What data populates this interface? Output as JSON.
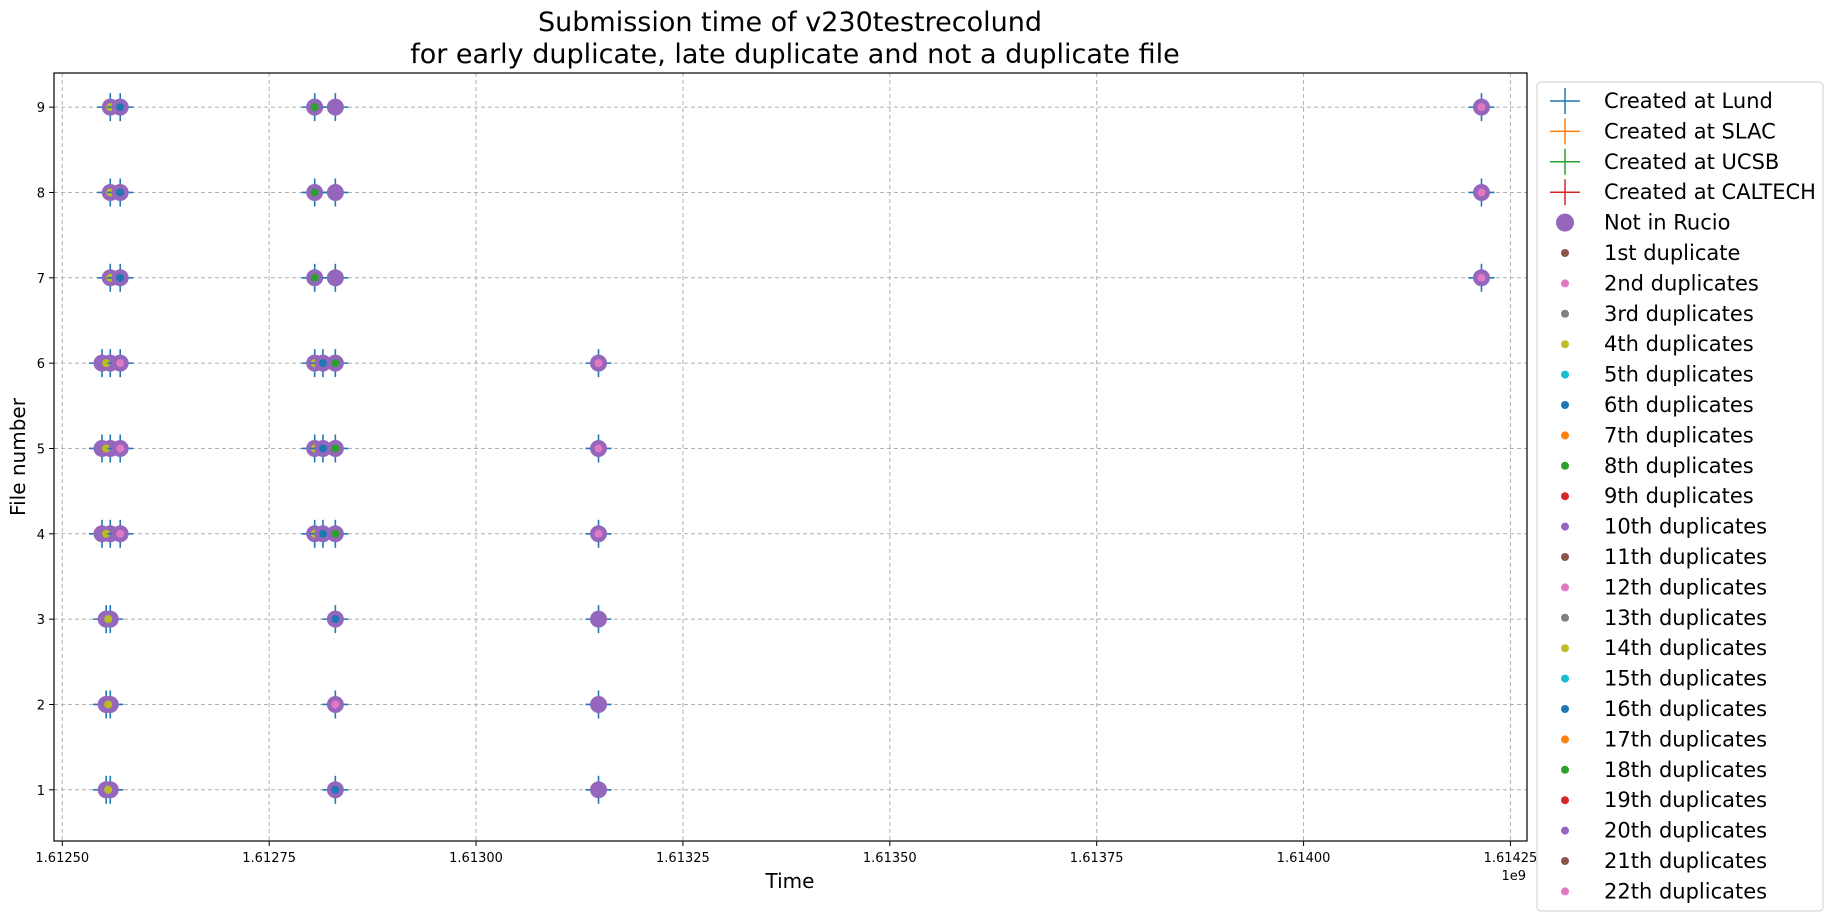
{
  "chart_data": {
    "type": "scatter",
    "title_line1": "Submission time of v230testrecolund",
    "title_line2": "for early duplicate, late duplicate and not a duplicate file",
    "xlabel": "Time",
    "ylabel": "File number",
    "x_offset_label": "1e9",
    "xlim": [
      1.61249,
      1.61427
    ],
    "ylim": [
      0.4,
      9.4
    ],
    "x_ticks": [
      1.6125,
      1.61275,
      1.613,
      1.61325,
      1.6135,
      1.61375,
      1.614,
      1.61425
    ],
    "x_tick_labels": [
      "1.61250",
      "1.61275",
      "1.61300",
      "1.61325",
      "1.61350",
      "1.61375",
      "1.61400",
      "1.61425"
    ],
    "y_ticks": [
      1,
      2,
      3,
      4,
      5,
      6,
      7,
      8,
      9
    ],
    "y_tick_labels": [
      "1",
      "2",
      "3",
      "4",
      "5",
      "6",
      "7",
      "8",
      "9"
    ],
    "grid": true,
    "legend_position": "outside-right",
    "colors": {
      "lund": "#1f77b4",
      "slac": "#ff7f0e",
      "ucsb": "#2ca02c",
      "caltech": "#d62728",
      "not_in_rucio": "#9467bd",
      "dup_cycle": [
        "#8c564b",
        "#e377c2",
        "#7f7f7f",
        "#bcbd22",
        "#17becf",
        "#1f77b4",
        "#ff7f0e",
        "#2ca02c",
        "#d62728",
        "#9467bd"
      ]
    },
    "legend": [
      {
        "label": "Created at Lund",
        "marker": "plus",
        "color": "#1f77b4"
      },
      {
        "label": "Created at SLAC",
        "marker": "plus",
        "color": "#ff7f0e"
      },
      {
        "label": "Created at UCSB",
        "marker": "plus",
        "color": "#2ca02c"
      },
      {
        "label": "Created at CALTECH",
        "marker": "plus",
        "color": "#d62728"
      },
      {
        "label": "Not in Rucio",
        "marker": "big-dot",
        "color": "#9467bd"
      },
      {
        "label": "1st duplicate",
        "marker": "dot",
        "color": "#8c564b"
      },
      {
        "label": "2nd duplicates",
        "marker": "dot",
        "color": "#e377c2"
      },
      {
        "label": "3rd duplicates",
        "marker": "dot",
        "color": "#7f7f7f"
      },
      {
        "label": "4th duplicates",
        "marker": "dot",
        "color": "#bcbd22"
      },
      {
        "label": "5th duplicates",
        "marker": "dot",
        "color": "#17becf"
      },
      {
        "label": "6th duplicates",
        "marker": "dot",
        "color": "#1f77b4"
      },
      {
        "label": "7th duplicates",
        "marker": "dot",
        "color": "#ff7f0e"
      },
      {
        "label": "8th duplicates",
        "marker": "dot",
        "color": "#2ca02c"
      },
      {
        "label": "9th duplicates",
        "marker": "dot",
        "color": "#d62728"
      },
      {
        "label": "10th duplicates",
        "marker": "dot",
        "color": "#9467bd"
      },
      {
        "label": "11th duplicates",
        "marker": "dot",
        "color": "#8c564b"
      },
      {
        "label": "12th duplicates",
        "marker": "dot",
        "color": "#e377c2"
      },
      {
        "label": "13th duplicates",
        "marker": "dot",
        "color": "#7f7f7f"
      },
      {
        "label": "14th duplicates",
        "marker": "dot",
        "color": "#bcbd22"
      },
      {
        "label": "15th duplicates",
        "marker": "dot",
        "color": "#17becf"
      },
      {
        "label": "16th duplicates",
        "marker": "dot",
        "color": "#1f77b4"
      },
      {
        "label": "17th duplicates",
        "marker": "dot",
        "color": "#ff7f0e"
      },
      {
        "label": "18th duplicates",
        "marker": "dot",
        "color": "#2ca02c"
      },
      {
        "label": "19th duplicates",
        "marker": "dot",
        "color": "#d62728"
      },
      {
        "label": "20th duplicates",
        "marker": "dot",
        "color": "#9467bd"
      },
      {
        "label": "21th duplicates",
        "marker": "dot",
        "color": "#8c564b"
      },
      {
        "label": "22th duplicates",
        "marker": "dot",
        "color": "#e377c2"
      }
    ],
    "points": [
      {
        "file": 1,
        "times": [
          1.612553,
          1.612558
        ],
        "lund": true,
        "rucio_missing": true,
        "dup_colors": [
          "#bcbd22"
        ]
      },
      {
        "file": 1,
        "times": [
          1.61283
        ],
        "lund": true,
        "rucio_missing": true,
        "dup_colors": [
          "#1f77b4"
        ]
      },
      {
        "file": 1,
        "times": [
          1.613148
        ],
        "lund": true,
        "rucio_missing": true,
        "dup_colors": []
      },
      {
        "file": 2,
        "times": [
          1.612553,
          1.612558
        ],
        "lund": true,
        "rucio_missing": true,
        "dup_colors": [
          "#bcbd22"
        ]
      },
      {
        "file": 2,
        "times": [
          1.61283
        ],
        "lund": true,
        "rucio_missing": true,
        "dup_colors": [
          "#e377c2"
        ]
      },
      {
        "file": 2,
        "times": [
          1.613148
        ],
        "lund": true,
        "rucio_missing": true,
        "dup_colors": []
      },
      {
        "file": 3,
        "times": [
          1.612553,
          1.612558
        ],
        "lund": true,
        "rucio_missing": true,
        "dup_colors": [
          "#bcbd22"
        ]
      },
      {
        "file": 3,
        "times": [
          1.61283
        ],
        "lund": true,
        "rucio_missing": true,
        "dup_colors": [
          "#1f77b4"
        ]
      },
      {
        "file": 3,
        "times": [
          1.613148
        ],
        "lund": true,
        "rucio_missing": true,
        "dup_colors": []
      },
      {
        "file": 4,
        "times": [
          1.612548,
          1.612558
        ],
        "lund": true,
        "rucio_missing": true,
        "dup_colors": [
          "#bcbd22"
        ]
      },
      {
        "file": 4,
        "times": [
          1.61257
        ],
        "lund": true,
        "rucio_missing": true,
        "dup_colors": [
          "#e377c2"
        ]
      },
      {
        "file": 4,
        "times": [
          1.612805
        ],
        "lund": true,
        "rucio_missing": true,
        "dup_colors": [
          "#bcbd22"
        ]
      },
      {
        "file": 4,
        "times": [
          1.612815
        ],
        "lund": true,
        "rucio_missing": true,
        "dup_colors": [
          "#1f77b4"
        ]
      },
      {
        "file": 4,
        "times": [
          1.61283
        ],
        "lund": true,
        "rucio_missing": true,
        "dup_colors": [
          "#2ca02c"
        ]
      },
      {
        "file": 4,
        "times": [
          1.613148
        ],
        "lund": true,
        "rucio_missing": true,
        "dup_colors": [
          "#e377c2"
        ]
      },
      {
        "file": 5,
        "times": [
          1.612548,
          1.612558
        ],
        "lund": true,
        "rucio_missing": true,
        "dup_colors": [
          "#bcbd22"
        ]
      },
      {
        "file": 5,
        "times": [
          1.61257
        ],
        "lund": true,
        "rucio_missing": true,
        "dup_colors": [
          "#e377c2"
        ]
      },
      {
        "file": 5,
        "times": [
          1.612805
        ],
        "lund": true,
        "rucio_missing": true,
        "dup_colors": [
          "#bcbd22"
        ]
      },
      {
        "file": 5,
        "times": [
          1.612815
        ],
        "lund": true,
        "rucio_missing": true,
        "dup_colors": [
          "#1f77b4"
        ]
      },
      {
        "file": 5,
        "times": [
          1.61283
        ],
        "lund": true,
        "rucio_missing": true,
        "dup_colors": [
          "#2ca02c"
        ]
      },
      {
        "file": 5,
        "times": [
          1.613148
        ],
        "lund": true,
        "rucio_missing": true,
        "dup_colors": [
          "#e377c2"
        ]
      },
      {
        "file": 6,
        "times": [
          1.612548,
          1.612558
        ],
        "lund": true,
        "rucio_missing": true,
        "dup_colors": [
          "#bcbd22"
        ]
      },
      {
        "file": 6,
        "times": [
          1.61257
        ],
        "lund": true,
        "rucio_missing": true,
        "dup_colors": [
          "#e377c2"
        ]
      },
      {
        "file": 6,
        "times": [
          1.612805
        ],
        "lund": true,
        "rucio_missing": true,
        "dup_colors": [
          "#bcbd22"
        ]
      },
      {
        "file": 6,
        "times": [
          1.612815
        ],
        "lund": true,
        "rucio_missing": true,
        "dup_colors": [
          "#1f77b4"
        ]
      },
      {
        "file": 6,
        "times": [
          1.61283
        ],
        "lund": true,
        "rucio_missing": true,
        "dup_colors": [
          "#2ca02c"
        ]
      },
      {
        "file": 6,
        "times": [
          1.613148
        ],
        "lund": true,
        "rucio_missing": true,
        "dup_colors": [
          "#e377c2"
        ]
      },
      {
        "file": 7,
        "times": [
          1.612558
        ],
        "lund": true,
        "rucio_missing": true,
        "dup_colors": [
          "#bcbd22"
        ]
      },
      {
        "file": 7,
        "times": [
          1.61257
        ],
        "lund": true,
        "rucio_missing": true,
        "dup_colors": [
          "#1f77b4"
        ]
      },
      {
        "file": 7,
        "times": [
          1.612805
        ],
        "lund": true,
        "rucio_missing": true,
        "dup_colors": [
          "#2ca02c"
        ]
      },
      {
        "file": 7,
        "times": [
          1.61283
        ],
        "lund": true,
        "rucio_missing": true,
        "dup_colors": []
      },
      {
        "file": 7,
        "times": [
          1.614215
        ],
        "lund": true,
        "rucio_missing": true,
        "dup_colors": [
          "#e377c2"
        ]
      },
      {
        "file": 8,
        "times": [
          1.612558
        ],
        "lund": true,
        "rucio_missing": true,
        "dup_colors": [
          "#bcbd22"
        ]
      },
      {
        "file": 8,
        "times": [
          1.61257
        ],
        "lund": true,
        "rucio_missing": true,
        "dup_colors": [
          "#1f77b4"
        ]
      },
      {
        "file": 8,
        "times": [
          1.612805
        ],
        "lund": true,
        "rucio_missing": true,
        "dup_colors": [
          "#2ca02c"
        ]
      },
      {
        "file": 8,
        "times": [
          1.61283
        ],
        "lund": true,
        "rucio_missing": true,
        "dup_colors": []
      },
      {
        "file": 8,
        "times": [
          1.614215
        ],
        "lund": true,
        "rucio_missing": true,
        "dup_colors": [
          "#e377c2"
        ]
      },
      {
        "file": 9,
        "times": [
          1.612558
        ],
        "lund": true,
        "rucio_missing": true,
        "dup_colors": [
          "#bcbd22"
        ]
      },
      {
        "file": 9,
        "times": [
          1.61257
        ],
        "lund": true,
        "rucio_missing": true,
        "dup_colors": [
          "#1f77b4"
        ]
      },
      {
        "file": 9,
        "times": [
          1.612805
        ],
        "lund": true,
        "rucio_missing": true,
        "dup_colors": [
          "#2ca02c"
        ]
      },
      {
        "file": 9,
        "times": [
          1.61283
        ],
        "lund": true,
        "rucio_missing": true,
        "dup_colors": []
      },
      {
        "file": 9,
        "times": [
          1.614215
        ],
        "lund": true,
        "rucio_missing": true,
        "dup_colors": [
          "#e377c2"
        ]
      }
    ]
  }
}
